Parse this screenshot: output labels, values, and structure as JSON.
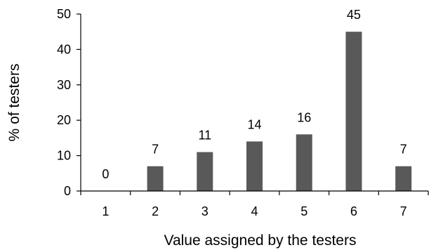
{
  "chart_data": {
    "type": "bar",
    "categories": [
      "1",
      "2",
      "3",
      "4",
      "5",
      "6",
      "7"
    ],
    "values": [
      0,
      7,
      11,
      14,
      16,
      45,
      7
    ],
    "data_labels": [
      "0",
      "7",
      "11",
      "14",
      "16",
      "45",
      "7"
    ],
    "xlabel": "Value assigned by the testers",
    "ylabel": "% of testers",
    "ylim": [
      0,
      50
    ],
    "yticks": [
      0,
      10,
      20,
      30,
      40,
      50
    ],
    "grid": false,
    "legend": "none",
    "bar_color": "#595959"
  }
}
